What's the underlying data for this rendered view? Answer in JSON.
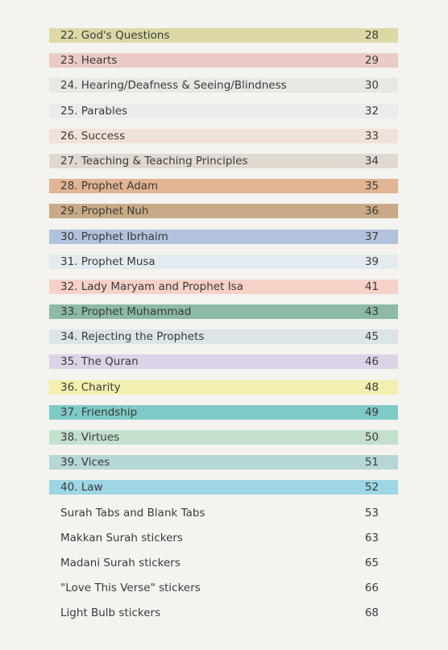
{
  "toc": {
    "entries": [
      {
        "title": "22. God's Questions",
        "page": "28",
        "color": "#dcd9a7"
      },
      {
        "title": "23. Hearts",
        "page": "29",
        "color": "#ebcbc5"
      },
      {
        "title": "24. Hearing/Deafness & Seeing/Blindness",
        "page": "30",
        "color": "#e8e7e3"
      },
      {
        "title": "25. Parables",
        "page": "32",
        "color": "#ebebeb"
      },
      {
        "title": "26. Success",
        "page": "33",
        "color": "#f1e2d9"
      },
      {
        "title": "27. Teaching & Teaching Principles",
        "page": "34",
        "color": "#e1d9d1"
      },
      {
        "title": "28. Prophet Adam",
        "page": "35",
        "color": "#e1b494"
      },
      {
        "title": "29. Prophet Nuh",
        "page": "36",
        "color": "#c8ab86"
      },
      {
        "title": "30. Prophet Ibrhaim",
        "page": "37",
        "color": "#b3c2dc"
      },
      {
        "title": "31. Prophet Musa",
        "page": "39",
        "color": "#e3ebf1"
      },
      {
        "title": "32. Lady Maryam and Prophet Isa",
        "page": "41",
        "color": "#f6d1c8"
      },
      {
        "title": "33. Prophet Muhammad",
        "page": "43",
        "color": "#8dbaa4"
      },
      {
        "title": "34. Rejecting the Prophets",
        "page": "45",
        "color": "#dbe4e9"
      },
      {
        "title": "35. The Quran",
        "page": "46",
        "color": "#ddd3e8"
      },
      {
        "title": "36. Charity",
        "page": "48",
        "color": "#f3f0af"
      },
      {
        "title": "37. Friendship",
        "page": "49",
        "color": "#7ecac7"
      },
      {
        "title": "38. Virtues",
        "page": "50",
        "color": "#c3e0cc"
      },
      {
        "title": "39. Vices",
        "page": "51",
        "color": "#b7d7d6"
      },
      {
        "title": "40. Law",
        "page": "52",
        "color": "#9dd6e4"
      },
      {
        "title": "Surah Tabs and Blank Tabs",
        "page": "53",
        "color": ""
      },
      {
        "title": "Makkan Surah stickers",
        "page": "63",
        "color": ""
      },
      {
        "title": "Madani Surah stickers",
        "page": "65",
        "color": ""
      },
      {
        "title": "\"Love This Verse\" stickers",
        "page": "66",
        "color": ""
      },
      {
        "title": "Light Bulb stickers",
        "page": "68",
        "color": ""
      }
    ]
  }
}
